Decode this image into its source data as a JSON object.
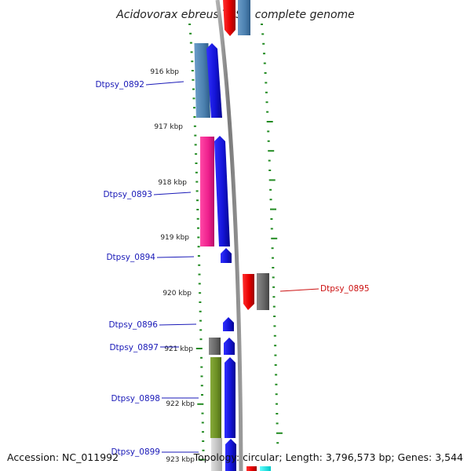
{
  "header": {
    "title": "Acidovorax ebreus TPSY, complete genome"
  },
  "footer": {
    "accession": "Accession: NC_011992",
    "topology": "Topology: circular; Length: 3,796,573 bp; Genes: 3,544"
  },
  "scale": {
    "ticks": [
      "916 kbp",
      "917 kbp",
      "918 kbp",
      "919 kbp",
      "920 kbp",
      "921 kbp",
      "922 kbp",
      "923 kbp"
    ]
  },
  "genes": [
    {
      "id": "Dtpsy_0892",
      "strand": "+",
      "color": "#1f1fd0"
    },
    {
      "id": "Dtpsy_0893",
      "strand": "+",
      "color": "#1f1fd0"
    },
    {
      "id": "Dtpsy_0894",
      "strand": "+",
      "color": "#1f1fd0"
    },
    {
      "id": "Dtpsy_0895",
      "strand": "-",
      "color": "#ee1111"
    },
    {
      "id": "Dtpsy_0896",
      "strand": "+",
      "color": "#1f1fd0"
    },
    {
      "id": "Dtpsy_0897",
      "strand": "+",
      "color": "#1f1fd0"
    },
    {
      "id": "Dtpsy_0898",
      "strand": "+",
      "color": "#1f1fd0"
    },
    {
      "id": "Dtpsy_0899",
      "strand": "+",
      "color": "#1f1fd0"
    }
  ],
  "colors": {
    "label_plus": "#1a1ab8",
    "label_minus": "#cc1111",
    "tick_green": "#228b22",
    "backbone": "#8a8a8a",
    "cog_blue": "#4f86b8",
    "cog_pink": "#ee1e8c",
    "cog_gray": "#6e6e6e",
    "cog_olive": "#6b8e23",
    "cog_light_gray": "#c8c8c8",
    "cog_cyan": "#00e5e5"
  }
}
